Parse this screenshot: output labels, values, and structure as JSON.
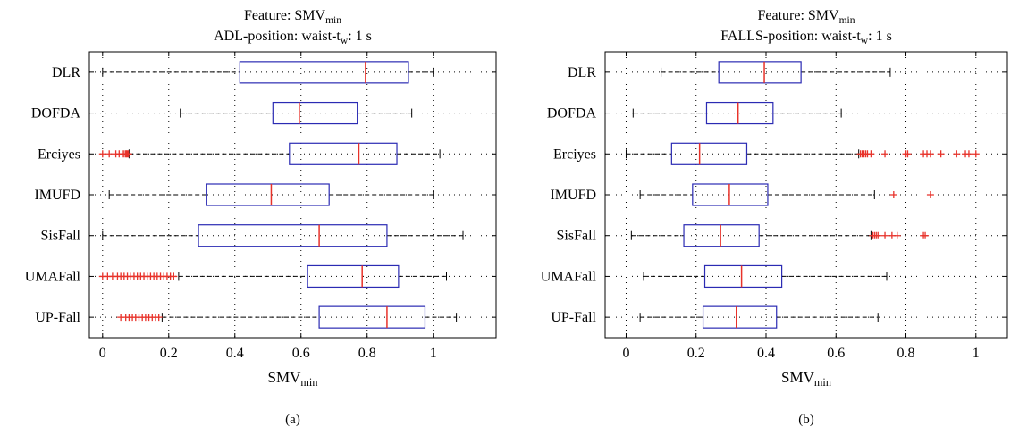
{
  "chart_data": [
    {
      "type": "boxplot",
      "orientation": "horizontal",
      "panel_label": "(a)",
      "title": {
        "line1": "Feature: SMV",
        "line1_sub": "min",
        "line2": "ADL-position: waist-t",
        "line2_sub": "w",
        "line2_suffix": ": 1 s"
      },
      "xlabel": "SMV",
      "xlabel_sub": "min",
      "xlim": [
        -0.04,
        1.19
      ],
      "xticks": [
        0,
        0.2,
        0.4,
        0.6,
        0.8,
        1
      ],
      "xtick_labels": [
        "0",
        "0.2",
        "0.4",
        "0.6",
        "0.8",
        "1"
      ],
      "grid": true,
      "categories": [
        "DLR",
        "DOFDA",
        "Erciyes",
        "IMUFD",
        "SisFall",
        "UMAFall",
        "UP-Fall"
      ],
      "boxes": [
        {
          "whisker_low": 0.0,
          "q1": 0.415,
          "median": 0.795,
          "q3": 0.925,
          "whisker_high": 1.0,
          "outliers": []
        },
        {
          "whisker_low": 0.235,
          "q1": 0.515,
          "median": 0.595,
          "q3": 0.77,
          "whisker_high": 0.935,
          "outliers": []
        },
        {
          "whisker_low": 0.08,
          "q1": 0.565,
          "median": 0.775,
          "q3": 0.89,
          "whisker_high": 1.02,
          "outliers": [
            0.0,
            0.02,
            0.04,
            0.05,
            0.06,
            0.065,
            0.07,
            0.072,
            0.075,
            0.078
          ]
        },
        {
          "whisker_low": 0.02,
          "q1": 0.315,
          "median": 0.51,
          "q3": 0.685,
          "whisker_high": 1.0,
          "outliers": []
        },
        {
          "whisker_low": 0.0,
          "q1": 0.29,
          "median": 0.655,
          "q3": 0.86,
          "whisker_high": 1.09,
          "outliers": []
        },
        {
          "whisker_low": 0.23,
          "q1": 0.62,
          "median": 0.785,
          "q3": 0.895,
          "whisker_high": 1.04,
          "outliers": [
            0.0,
            0.015,
            0.03,
            0.045,
            0.055,
            0.065,
            0.075,
            0.085,
            0.095,
            0.105,
            0.115,
            0.125,
            0.135,
            0.145,
            0.155,
            0.165,
            0.175,
            0.185,
            0.195,
            0.205,
            0.215
          ]
        },
        {
          "whisker_low": 0.18,
          "q1": 0.655,
          "median": 0.86,
          "q3": 0.975,
          "whisker_high": 1.07,
          "outliers": [
            0.055,
            0.07,
            0.08,
            0.09,
            0.1,
            0.11,
            0.12,
            0.13,
            0.14,
            0.15,
            0.16,
            0.17
          ]
        }
      ]
    },
    {
      "type": "boxplot",
      "orientation": "horizontal",
      "panel_label": "(b)",
      "title": {
        "line1": "Feature: SMV",
        "line1_sub": "min",
        "line2": "FALLS-position: waist-t",
        "line2_sub": "w",
        "line2_suffix": ": 1 s"
      },
      "xlabel": "SMV",
      "xlabel_sub": "min",
      "xlim": [
        -0.06,
        1.09
      ],
      "xticks": [
        0,
        0.2,
        0.4,
        0.6,
        0.8,
        1
      ],
      "xtick_labels": [
        "0",
        "0.2",
        "0.4",
        "0.6",
        "0.8",
        "1"
      ],
      "grid": true,
      "categories": [
        "DLR",
        "DOFDA",
        "Erciyes",
        "IMUFD",
        "SisFall",
        "UMAFall",
        "UP-Fall"
      ],
      "boxes": [
        {
          "whisker_low": 0.1,
          "q1": 0.265,
          "median": 0.395,
          "q3": 0.5,
          "whisker_high": 0.755,
          "outliers": []
        },
        {
          "whisker_low": 0.02,
          "q1": 0.23,
          "median": 0.32,
          "q3": 0.42,
          "whisker_high": 0.615,
          "outliers": []
        },
        {
          "whisker_low": 0.0,
          "q1": 0.13,
          "median": 0.21,
          "q3": 0.345,
          "whisker_high": 0.665,
          "outliers": [
            0.67,
            0.675,
            0.68,
            0.685,
            0.69,
            0.7,
            0.74,
            0.8,
            0.805,
            0.85,
            0.86,
            0.87,
            0.9,
            0.945,
            0.97,
            0.98,
            1.0
          ]
        },
        {
          "whisker_low": 0.04,
          "q1": 0.19,
          "median": 0.295,
          "q3": 0.405,
          "whisker_high": 0.71,
          "outliers": [
            0.765,
            0.87
          ]
        },
        {
          "whisker_low": 0.015,
          "q1": 0.165,
          "median": 0.27,
          "q3": 0.38,
          "whisker_high": 0.7,
          "outliers": [
            0.705,
            0.71,
            0.715,
            0.72,
            0.74,
            0.76,
            0.775,
            0.85,
            0.855
          ]
        },
        {
          "whisker_low": 0.05,
          "q1": 0.225,
          "median": 0.33,
          "q3": 0.445,
          "whisker_high": 0.745,
          "outliers": []
        },
        {
          "whisker_low": 0.04,
          "q1": 0.22,
          "median": 0.315,
          "q3": 0.43,
          "whisker_high": 0.72,
          "outliers": []
        }
      ]
    }
  ],
  "colors": {
    "box": "#2b2bb3",
    "median": "#e8322a",
    "outlier": "#e8322a",
    "whisker": "#000000",
    "grid": "#000000"
  }
}
